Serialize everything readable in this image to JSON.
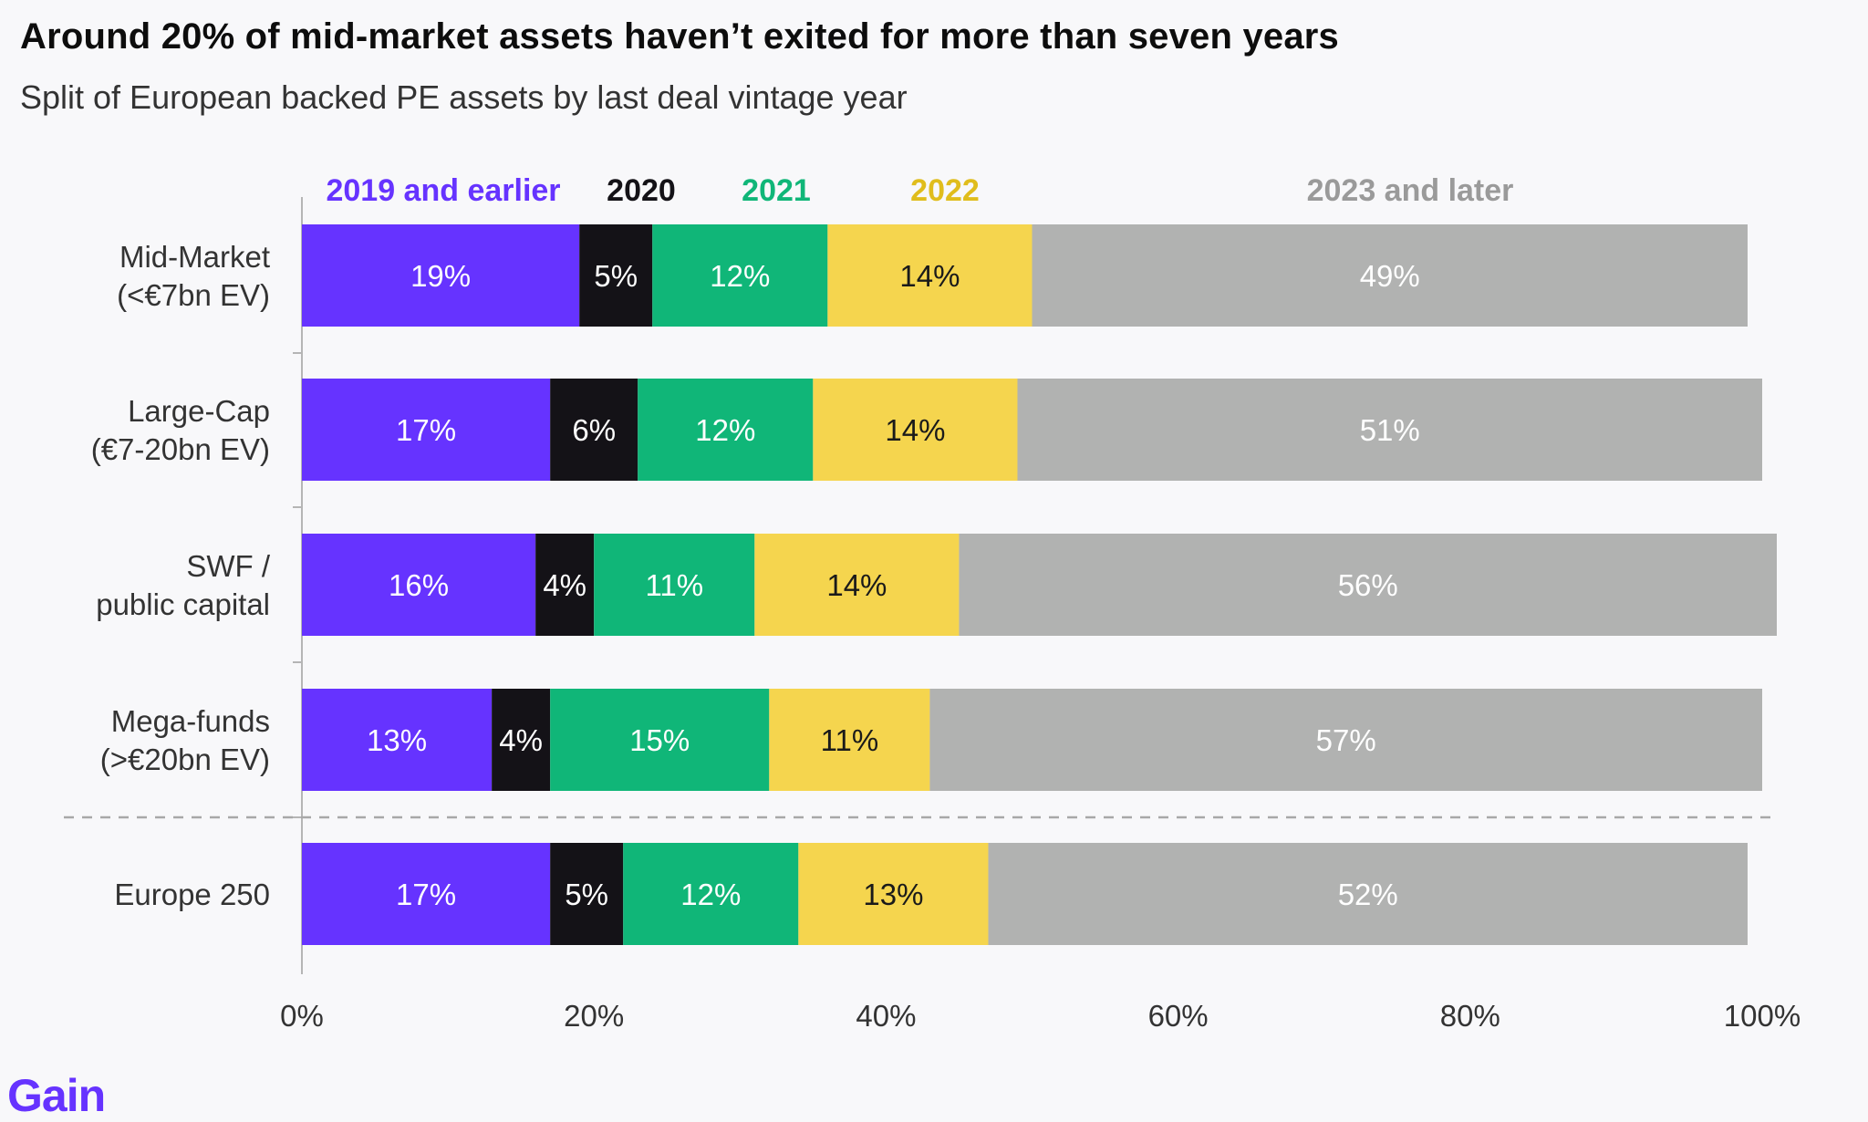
{
  "title": "Around 20% of mid-market assets haven’t exited for more than seven years",
  "subtitle": "Split of European backed PE assets by last deal vintage year",
  "logo": "Gain",
  "colors": {
    "2019 and earlier": "#6633ff",
    "2020": "#141217",
    "2021": "#10b678",
    "2022": "#f5d54e",
    "2023 and later": "#b1b2b1",
    "legend_2022": "#e0bd1c",
    "legend_2023": "#9a9a9a"
  },
  "chart_data": {
    "type": "bar",
    "orientation": "horizontal",
    "stacked": true,
    "categories": [
      [
        "Mid-Market",
        "(<€7bn EV)"
      ],
      [
        "Large-Cap",
        "(€7-20bn EV)"
      ],
      [
        "SWF /",
        "public capital"
      ],
      [
        "Mega-funds",
        "(>€20bn EV)"
      ],
      [
        "Europe 250"
      ]
    ],
    "series": [
      {
        "name": "2019 and earlier",
        "values": [
          19,
          17,
          16,
          13,
          17
        ],
        "labels": [
          "19%",
          "17%",
          "16%",
          "13%",
          "17%"
        ]
      },
      {
        "name": "2020",
        "values": [
          5,
          6,
          4,
          4,
          5
        ],
        "labels": [
          "5%",
          "6%",
          "4%",
          "4%",
          "5%"
        ]
      },
      {
        "name": "2021",
        "values": [
          12,
          12,
          11,
          15,
          12
        ],
        "labels": [
          "12%",
          "12%",
          "11%",
          "15%",
          "12%"
        ]
      },
      {
        "name": "2022",
        "values": [
          14,
          14,
          14,
          11,
          13
        ],
        "labels": [
          "14%",
          "14%",
          "14%",
          "11%",
          "13%"
        ]
      },
      {
        "name": "2023 and later",
        "values": [
          49,
          51,
          56,
          57,
          52
        ],
        "labels": [
          "49%",
          "51%",
          "56%",
          "57%",
          "52%"
        ]
      }
    ],
    "x_ticks": [
      "0%",
      "20%",
      "40%",
      "60%",
      "80%",
      "100%"
    ],
    "xlim": [
      0,
      100
    ],
    "legend_position": "top",
    "grid": false,
    "separator_before_last": true
  }
}
